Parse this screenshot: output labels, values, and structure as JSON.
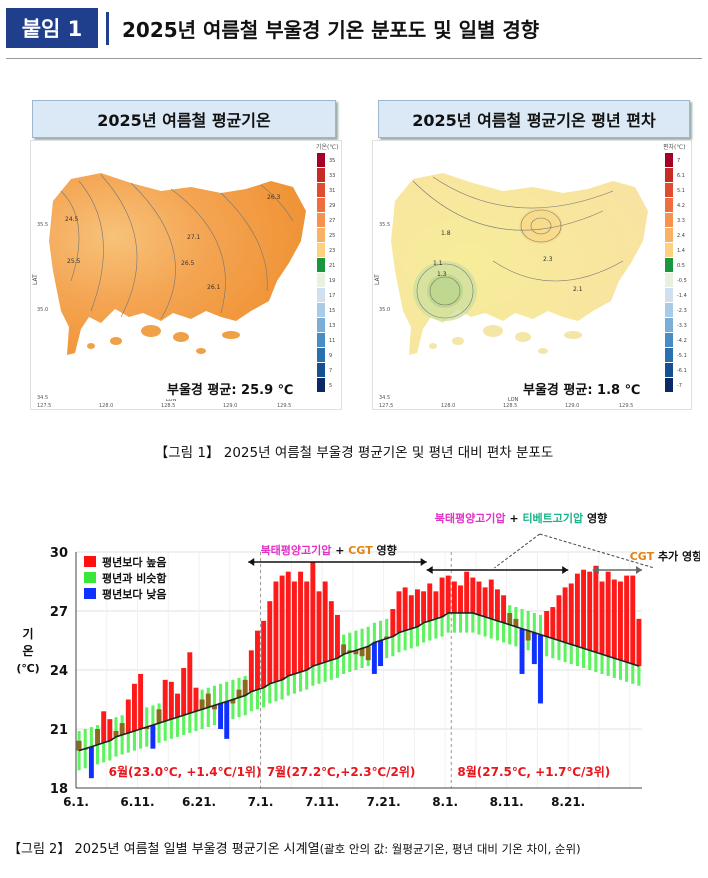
{
  "header": {
    "badge": "붙임 1",
    "title": "2025년 여름철 부울경 기온 분포도 및 일별 경향"
  },
  "map_left": {
    "title": "2025년 여름철 평균기온",
    "note": "부울경 평균: 25.9 ℃",
    "legend_title": "기온(℃)",
    "legend_values": [
      "35",
      "33",
      "31",
      "29",
      "27",
      "25",
      "23",
      "21",
      "19",
      "17",
      "15",
      "13",
      "11",
      "9",
      "7",
      "5"
    ],
    "legend_colors": [
      "#a50026",
      "#c62c22",
      "#e24b2f",
      "#ef6e3f",
      "#f6914e",
      "#f9b265",
      "#fcd27f",
      "#1a9641",
      "#e6f2de",
      "#cfe1f0",
      "#a9cbe6",
      "#79aed8",
      "#4a8cc4",
      "#2a6fb0",
      "#164f92",
      "#0b2a63"
    ],
    "axis_x_label": "LON",
    "axis_y_label": "LAT",
    "x_ticks": [
      "127.5",
      "128.0",
      "128.5",
      "129.0",
      "129.5"
    ],
    "y_ticks": [
      "35.5",
      "35.0",
      "34.5"
    ],
    "contour_labels": [
      "24.5",
      "25.5",
      "27.1",
      "26.1",
      "26.3",
      "26.5",
      "24.5"
    ]
  },
  "map_right": {
    "title": "2025년 여름철 평균기온 평년 편차",
    "note": "부울경 평균: 1.8 ℃",
    "legend_title": "편차(℃)",
    "legend_values": [
      "7",
      "6.1",
      "5.1",
      "4.2",
      "3.3",
      "2.4",
      "1.4",
      "0.5",
      "-0.5",
      "-1.4",
      "-2.3",
      "-3.3",
      "-4.2",
      "-5.1",
      "-6.1",
      "-7"
    ],
    "legend_colors": [
      "#a50026",
      "#c62c22",
      "#e24b2f",
      "#ef6e3f",
      "#f6914e",
      "#f9b265",
      "#fcd27f",
      "#1a9641",
      "#e6f2de",
      "#cfe1f0",
      "#a9cbe6",
      "#79aed8",
      "#4a8cc4",
      "#2a6fb0",
      "#164f92",
      "#0b2a63"
    ],
    "axis_x_label": "LON",
    "axis_y_label": "LAT",
    "x_ticks": [
      "127.5",
      "128.0",
      "128.5",
      "129.0",
      "129.5"
    ],
    "y_ticks": [
      "35.5",
      "35.0",
      "34.5"
    ],
    "contour_labels": [
      "1.8",
      "1.1",
      "1.3",
      "2.3",
      "2.1"
    ]
  },
  "figure1_caption": "【그림 1】 2025년 여름철 부울경 평균기온 및 평년 대비 편차 분포도",
  "figure2_caption": {
    "main": "【그림 2】 2025년 여름철 일별 부울경 평균기온 시계열",
    "sub": "(괄호 안의 값: 월평균기온, 평년 대비 기온 차이, 순위)"
  },
  "chart_data": {
    "type": "bar",
    "ylabel": "기온(℃)",
    "ylim": [
      18,
      30
    ],
    "y_ticks": [
      18,
      21,
      24,
      27,
      30
    ],
    "x_tick_labels": [
      "6.1.",
      "6.11.",
      "6.21.",
      "7.1.",
      "7.11.",
      "7.21.",
      "8.1.",
      "8.11.",
      "8.21."
    ],
    "legend": [
      {
        "label": "평년보다 높음",
        "color": "#ff1010"
      },
      {
        "label": "평년과 비슷함",
        "color": "#39e63a"
      },
      {
        "label": "평년보다 낮음",
        "color": "#1030ff"
      }
    ],
    "month_labels": [
      "6월(23.0℃, +1.4℃/1위)",
      "7월(27.2℃,+2.3℃/2위)",
      "8월(27.5℃, +1.7℃/3위)"
    ],
    "annotations": {
      "top": "북태평양고기압 + 티베트고기압 영향",
      "a1_part1": "북태평양고기압",
      "a1_plus": "+",
      "a1_part2": "CGT",
      "a1_part3": "영향",
      "a3_part1": "CGT",
      "a3_part2": "추가 영향",
      "top_part1": "북태평양고기압",
      "top_plus": "+",
      "top_part2": "티베트고기압",
      "top_part3": "영향"
    },
    "dates": [
      "6.1",
      "6.2",
      "6.3",
      "6.4",
      "6.5",
      "6.6",
      "6.7",
      "6.8",
      "6.9",
      "6.10",
      "6.11",
      "6.12",
      "6.13",
      "6.14",
      "6.15",
      "6.16",
      "6.17",
      "6.18",
      "6.19",
      "6.20",
      "6.21",
      "6.22",
      "6.23",
      "6.24",
      "6.25",
      "6.26",
      "6.27",
      "6.28",
      "6.29",
      "6.30",
      "7.1",
      "7.2",
      "7.3",
      "7.4",
      "7.5",
      "7.6",
      "7.7",
      "7.8",
      "7.9",
      "7.10",
      "7.11",
      "7.12",
      "7.13",
      "7.14",
      "7.15",
      "7.16",
      "7.17",
      "7.18",
      "7.19",
      "7.20",
      "7.21",
      "7.22",
      "7.23",
      "7.24",
      "7.25",
      "7.26",
      "7.27",
      "7.28",
      "7.29",
      "7.30",
      "7.31",
      "8.1",
      "8.2",
      "8.3",
      "8.4",
      "8.5",
      "8.6",
      "8.7",
      "8.8",
      "8.9",
      "8.10",
      "8.11",
      "8.12",
      "8.13",
      "8.14",
      "8.15",
      "8.16",
      "8.17",
      "8.18",
      "8.19",
      "8.20",
      "8.21",
      "8.22",
      "8.23",
      "8.24",
      "8.25",
      "8.26",
      "8.27",
      "8.28",
      "8.29",
      "8.30",
      "8.31"
    ],
    "normal": [
      19.9,
      20.0,
      20.1,
      20.2,
      20.3,
      20.4,
      20.6,
      20.7,
      20.8,
      20.9,
      21.0,
      21.1,
      21.2,
      21.3,
      21.4,
      21.5,
      21.6,
      21.7,
      21.8,
      21.9,
      22.0,
      22.1,
      22.2,
      22.3,
      22.4,
      22.5,
      22.6,
      22.7,
      22.9,
      23.0,
      23.1,
      23.3,
      23.4,
      23.5,
      23.7,
      23.8,
      23.9,
      24.0,
      24.2,
      24.3,
      24.4,
      24.5,
      24.6,
      24.8,
      24.9,
      25.0,
      25.1,
      25.2,
      25.4,
      25.5,
      25.6,
      25.7,
      25.9,
      26.0,
      26.1,
      26.2,
      26.4,
      26.5,
      26.6,
      26.7,
      26.9,
      26.9,
      26.9,
      26.9,
      26.9,
      26.8,
      26.7,
      26.6,
      26.5,
      26.4,
      26.3,
      26.2,
      26.1,
      26.0,
      25.9,
      25.8,
      25.7,
      25.6,
      25.5,
      25.4,
      25.3,
      25.2,
      25.1,
      25.0,
      24.9,
      24.8,
      24.7,
      24.6,
      24.5,
      24.4,
      24.3,
      24.2
    ],
    "observed": [
      20.4,
      20.0,
      18.5,
      21.0,
      21.9,
      21.5,
      20.9,
      21.3,
      22.5,
      23.3,
      23.8,
      21.0,
      20.0,
      22.0,
      23.5,
      23.4,
      22.8,
      24.1,
      24.9,
      23.1,
      22.5,
      22.8,
      22.0,
      21.0,
      20.5,
      22.3,
      23.0,
      23.5,
      25.0,
      26.0,
      26.5,
      27.5,
      28.5,
      28.8,
      29.0,
      28.5,
      29.0,
      28.5,
      29.5,
      28.0,
      28.5,
      27.5,
      26.8,
      25.3,
      25.0,
      24.8,
      24.7,
      24.5,
      23.8,
      24.2,
      25.7,
      27.1,
      28.0,
      28.2,
      27.8,
      28.1,
      28.0,
      28.4,
      28.0,
      28.7,
      28.8,
      28.5,
      28.3,
      29.0,
      28.7,
      28.5,
      28.2,
      28.6,
      28.1,
      27.8,
      26.9,
      26.6,
      23.8,
      25.5,
      24.3,
      22.3,
      27.0,
      27.2,
      27.8,
      28.2,
      28.4,
      28.9,
      29.1,
      29.0,
      29.3,
      28.5,
      29.0,
      28.6,
      28.5,
      28.8,
      28.8,
      26.6
    ],
    "series": [
      {
        "name": "평년보다 높음",
        "role": "above"
      },
      {
        "name": "평년과 비슷함",
        "role": "normal"
      },
      {
        "name": "평년보다 낮음",
        "role": "below"
      }
    ]
  }
}
